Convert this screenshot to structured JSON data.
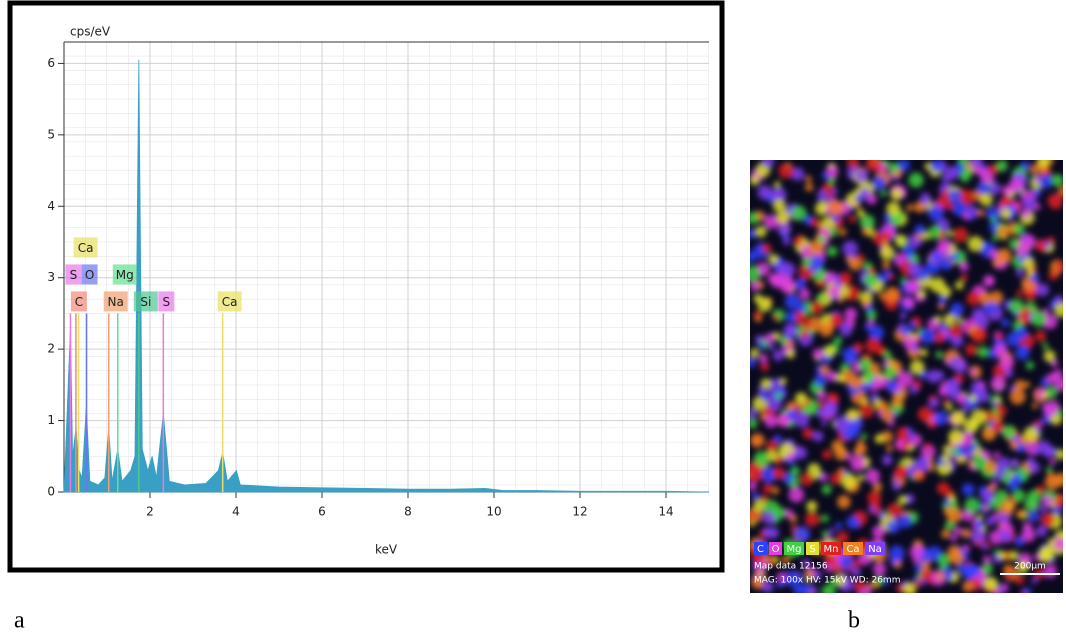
{
  "chart_data": {
    "type": "area",
    "y_label": "cps/eV",
    "x_label": "keV",
    "color": "#3a9fc4",
    "x": [
      0,
      0.15,
      0.2,
      0.28,
      0.35,
      0.42,
      0.52,
      0.6,
      0.8,
      0.95,
      1.04,
      1.12,
      1.25,
      1.35,
      1.55,
      1.65,
      1.74,
      1.82,
      1.95,
      2.05,
      2.15,
      2.31,
      2.45,
      2.8,
      3.3,
      3.59,
      3.69,
      3.8,
      4.01,
      4.1,
      5,
      6,
      7,
      8,
      9,
      9.8,
      10.2,
      11,
      12,
      13,
      14,
      15
    ],
    "values": [
      0,
      2.3,
      0.5,
      0.9,
      0.3,
      0.2,
      1.2,
      0.15,
      0.1,
      0.2,
      0.9,
      0.15,
      0.6,
      0.15,
      0.3,
      0.5,
      6.05,
      0.6,
      0.3,
      0.5,
      0.2,
      1.1,
      0.15,
      0.1,
      0.12,
      0.3,
      0.55,
      0.15,
      0.3,
      0.1,
      0.07,
      0.06,
      0.05,
      0.04,
      0.04,
      0.05,
      0.02,
      0.02,
      0.01,
      0.01,
      0.01,
      0
    ],
    "xlim": [
      0,
      15
    ],
    "xticks": [
      2,
      4,
      6,
      8,
      10,
      12,
      14
    ],
    "ylim": [
      0,
      6.3
    ],
    "yticks": [
      0,
      1,
      2,
      3,
      4,
      5,
      6
    ],
    "grid": true,
    "marker_height": 2.5,
    "elements": [
      {
        "label": "C",
        "energy": 0.277,
        "color": "#f08a78"
      },
      {
        "label": "Na",
        "energy": 1.04,
        "color": "#f0a070"
      },
      {
        "label": "Si",
        "energy": 1.74,
        "color": "#50c890"
      },
      {
        "label": "S",
        "energy": 2.31,
        "color": "#e878e8"
      },
      {
        "label": "Ca",
        "energy": 3.69,
        "color": "#e8e060"
      },
      {
        "label": "S",
        "energy": 0.15,
        "color": "#e878e8"
      },
      {
        "label": "O",
        "energy": 0.525,
        "color": "#6878f0"
      },
      {
        "label": "Mg",
        "energy": 1.25,
        "color": "#60e090"
      },
      {
        "label": "Ca",
        "energy": 0.34,
        "color": "#e8e060"
      }
    ]
  },
  "panel_labels": [
    "a",
    "b"
  ],
  "map": {
    "legend": [
      {
        "label": "C",
        "color": "#3040ff"
      },
      {
        "label": "O",
        "color": "#e040e0"
      },
      {
        "label": "Mg",
        "color": "#40d040"
      },
      {
        "label": "S",
        "color": "#e0e030"
      },
      {
        "label": "Mn",
        "color": "#e02020"
      },
      {
        "label": "Ca",
        "color": "#f08020"
      },
      {
        "label": "Na",
        "color": "#8040f0"
      }
    ],
    "info": [
      "Map data 12156",
      "MAG: 100x HV: 15kV WD: 26mm"
    ],
    "scale_bar": "200µm"
  }
}
